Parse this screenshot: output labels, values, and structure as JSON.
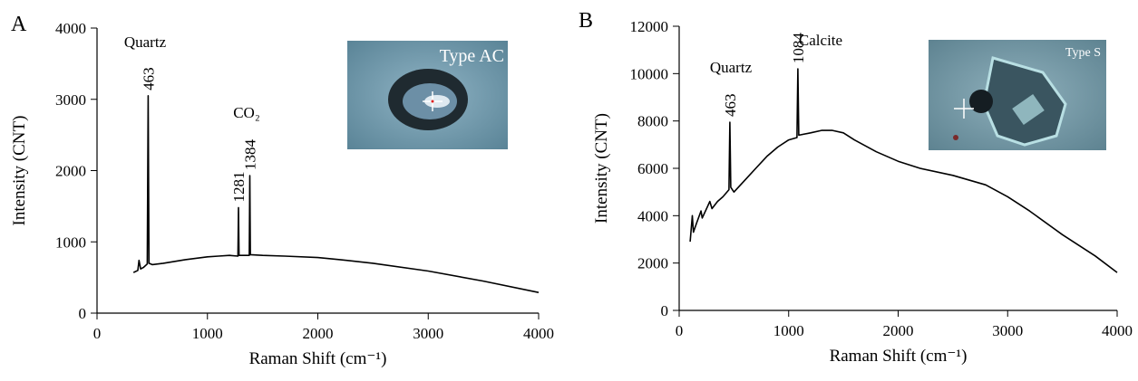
{
  "chart_data": [
    {
      "type": "line",
      "panel_label": "A",
      "xlabel": "Raman Shift (cm⁻¹)",
      "ylabel": "Intensity (CNT)",
      "xlim": [
        0,
        4000
      ],
      "xticks": [
        0,
        1000,
        2000,
        3000,
        4000
      ],
      "ylim": [
        0,
        4000
      ],
      "yticks": [
        0,
        1000,
        2000,
        3000,
        4000
      ],
      "color": "#000000",
      "x": [
        330,
        370,
        380,
        395,
        420,
        455,
        463,
        471,
        500,
        600,
        800,
        1000,
        1100,
        1200,
        1276,
        1281,
        1286,
        1350,
        1379,
        1384,
        1389,
        1500,
        1700,
        2000,
        2200,
        2500,
        3000,
        3500,
        4000
      ],
      "values": [
        570,
        600,
        740,
        620,
        640,
        690,
        3050,
        700,
        680,
        700,
        750,
        790,
        800,
        810,
        800,
        1480,
        810,
        810,
        810,
        1930,
        820,
        810,
        800,
        780,
        750,
        700,
        590,
        450,
        290
      ],
      "peak_labels": [
        463,
        1281,
        1384
      ],
      "annotations": [
        "Quartz",
        "CO₂"
      ],
      "inset_label": "Type AC"
    },
    {
      "type": "line",
      "panel_label": "B",
      "xlabel": "Raman Shift (cm⁻¹)",
      "ylabel": "Intensity (CNT)",
      "xlim": [
        0,
        4000
      ],
      "xticks": [
        0,
        1000,
        2000,
        3000,
        4000
      ],
      "ylim": [
        0,
        12000
      ],
      "yticks": [
        0,
        2000,
        4000,
        6000,
        8000,
        10000,
        12000
      ],
      "color": "#000000",
      "x": [
        100,
        120,
        130,
        160,
        200,
        210,
        260,
        280,
        300,
        350,
        400,
        455,
        463,
        471,
        500,
        600,
        700,
        800,
        900,
        1000,
        1076,
        1084,
        1092,
        1200,
        1300,
        1400,
        1500,
        1600,
        1800,
        2000,
        2200,
        2500,
        2800,
        3000,
        3200,
        3500,
        3800,
        4000
      ],
      "values": [
        2900,
        4000,
        3300,
        3700,
        4200,
        3900,
        4400,
        4600,
        4300,
        4600,
        4800,
        5100,
        7950,
        5200,
        5000,
        5500,
        6000,
        6500,
        6900,
        7200,
        7300,
        10200,
        7400,
        7500,
        7600,
        7600,
        7500,
        7200,
        6700,
        6300,
        6000,
        5700,
        5300,
        4800,
        4200,
        3200,
        2300,
        1600
      ],
      "peak_labels": [
        463,
        1084
      ],
      "annotations": [
        "Quartz",
        "Calcite"
      ],
      "inset_label": "Type S"
    }
  ]
}
